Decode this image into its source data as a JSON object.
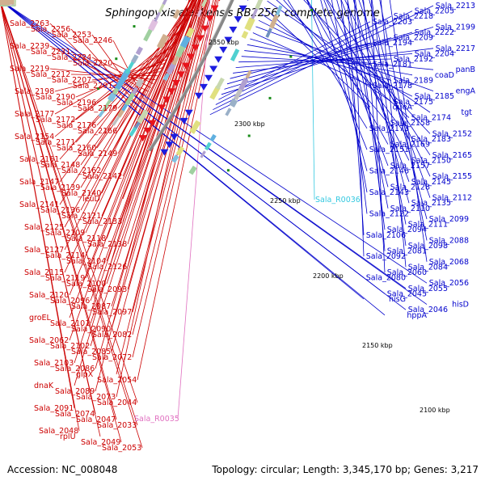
{
  "title": "Sphingopyxis alaskensis RB2256, complete genome",
  "footer": {
    "accession": "Accession: NC_008048",
    "summary": "Topology: circular; Length: 3,345,170 bp; Genes: 3,217"
  },
  "colors": {
    "forward_strand": "#e8141c",
    "reverse_strand": "#1d1de0",
    "label_red": "#cc0000",
    "label_blue": "#0000cc",
    "rna_label": "#33c8e0",
    "pseudo_label": "#e070c0",
    "backbone": "#888888",
    "tick_marker": "#1a8c1a"
  },
  "kbp_markers": [
    "2350 kbp",
    "2300 kbp",
    "2250 kbp",
    "2200 kbp",
    "2150 kbp",
    "2100 kbp"
  ],
  "left_labels": [
    "Sala_2263",
    "Sala_2256",
    "Sala_2253",
    "Sala_2246",
    "Sala_2239",
    "Sala_2231",
    "Sala_2224",
    "Sala_2220",
    "Sala_2219",
    "Sala_2212",
    "Sala_2207",
    "Sala_2201",
    "Sala_2198",
    "Sala_2190",
    "Sala_2196",
    "Sala_2179",
    "Sala_2177",
    "Sala_2172",
    "Sala_2176",
    "Sala_2166",
    "Sala_2154",
    "Sala_2171",
    "Sala_2160",
    "Sala_2149",
    "Sala_2161",
    "Sala_2148",
    "Sala_2162",
    "Sala_2142",
    "Sala_2147",
    "Sala_2139",
    "Sala_2140",
    "leuD",
    "Sala_2141",
    "Sala_2136",
    "Sala_2121",
    "Sala_2133",
    "Sala_2125",
    "Sala_2109",
    "Sala_2118",
    "Sala_2138",
    "Sala_2127",
    "Sala_2114",
    "Sala_2104",
    "Sala_2126",
    "Sala_2115",
    "Sala_2119",
    "Sala_2100",
    "Sala_2093",
    "Sala_2120",
    "Sala_2096",
    "Sala_2087",
    "Sala_2097",
    "groEL",
    "Sala_2101",
    "Sala_2090",
    "Sala_2082",
    "Sala_2062",
    "Sala_2102",
    "Sala_2085",
    "Sala_2072",
    "Sala_2103",
    "Sala_2086",
    "glpX",
    "Sala_2054",
    "dnaK",
    "Sala_2089",
    "Sala_2073",
    "Sala_2044",
    "Sala_2091",
    "Sala_2074",
    "Sala_2047",
    "Sala_2033",
    "Sala_2048",
    "rplU",
    "Sala_2049",
    "Sala_2053"
  ],
  "pseudo_labels": [
    "Sala_R0035"
  ],
  "rna_labels": [
    "Sala_R0036"
  ],
  "right_labels": [
    "Sala_2213",
    "Sala_2205",
    "Sala_2218",
    "Sala_2203",
    "Sala_2199",
    "Sala_2222",
    "Sala_2209",
    "Sala_2194",
    "Sala_2217",
    "Sala_2204",
    "Sala_2192",
    "Sala_2181",
    "panB",
    "coaD",
    "Sala_2189",
    "Sala_2178",
    "engA",
    "Sala_2185",
    "Sala_2175",
    "queA",
    "tgt",
    "Sala_2174",
    "Sala_2158",
    "Sala_2173",
    "Sala_2152",
    "Sala_2183",
    "Sala_2169",
    "Sala_2151",
    "Sala_2165",
    "Sala_2150",
    "Sala_2157",
    "Sala_2146",
    "Sala_2155",
    "Sala_2145",
    "Sala_2128",
    "Sala_2143",
    "Sala_2112",
    "Sala_2135",
    "Sala_2110",
    "Sala_2122",
    "Sala_2099",
    "Sala_2111",
    "Sala_2094",
    "Sala_2106",
    "Sala_2088",
    "Sala_2098",
    "Sala_2081",
    "Sala_2092",
    "Sala_2068",
    "Sala_2084",
    "Sala_2060",
    "Sala_2080",
    "Sala_2056",
    "Sala_2055",
    "Sala_2045",
    "hisG",
    "hisD",
    "Sala_2046",
    "hppA"
  ]
}
